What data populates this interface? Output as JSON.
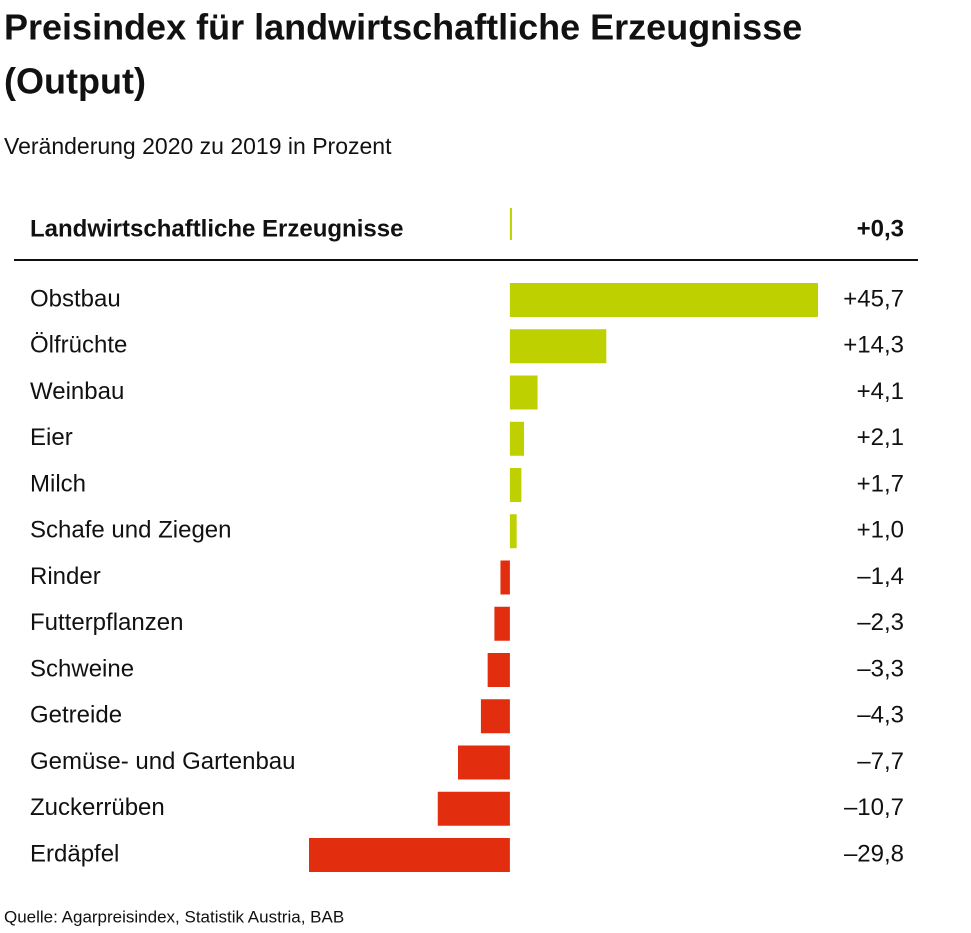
{
  "chart_data": {
    "type": "bar",
    "orientation": "horizontal",
    "title": "Preisindex für landwirtschaftliche Erzeugnisse",
    "title_line2": "(Output)",
    "subtitle": "Veränderung 2020 zu 2019 in Prozent",
    "total_label": "Landwirtschaftliche Erzeugnisse",
    "total_value": 0.3,
    "total_value_label": "+0,3",
    "categories": [
      "Obstbau",
      "Ölfrüchte",
      "Weinbau",
      "Eier",
      "Milch",
      "Schafe und Ziegen",
      "Rinder",
      "Futterpflanzen",
      "Schweine",
      "Getreide",
      "Gemüse- und Gartenbau",
      "Zuckerrüben",
      "Erdäpfel"
    ],
    "values": [
      45.7,
      14.3,
      4.1,
      2.1,
      1.7,
      1.0,
      -1.4,
      -2.3,
      -3.3,
      -4.3,
      -7.7,
      -10.7,
      -29.8
    ],
    "value_labels": [
      "+45,7",
      "+14,3",
      "+4,1",
      "+2,1",
      "+1,7",
      "+1,0",
      "–1,4",
      "–2,3",
      "–3,3",
      "–4,3",
      "–7,7",
      "–10,7",
      "–29,8"
    ],
    "positive_color": "#bfd000",
    "negative_color": "#e32d0f",
    "source": "Quelle: Agarpreisindex, Statistik Austria, BAB"
  }
}
